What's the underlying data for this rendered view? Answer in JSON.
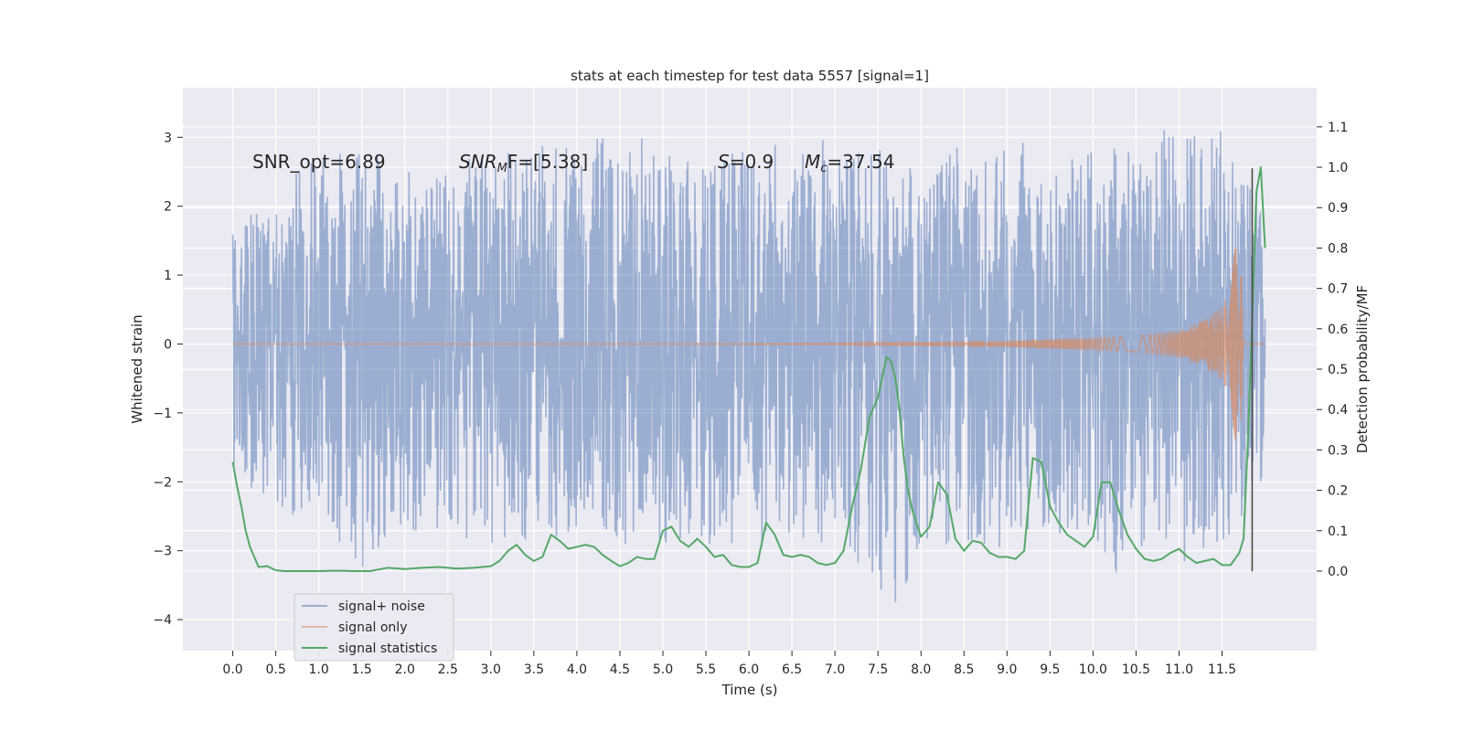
{
  "chart_data": {
    "type": "line",
    "title": "stats at each timestep for test data 5557 [signal=1]",
    "xlabel": "Time (s)",
    "ylabel_left": "Whitened strain",
    "ylabel_right": "Detection probability/MF",
    "xlim": [
      -0.58,
      12.6
    ],
    "ylim_left": [
      -4.45,
      3.72
    ],
    "ylim_right": [
      -0.197,
      1.197
    ],
    "x_ticks": [
      "0.0",
      "0.5",
      "1.0",
      "1.5",
      "2.0",
      "2.5",
      "3.0",
      "3.5",
      "4.0",
      "4.5",
      "5.0",
      "5.5",
      "6.0",
      "6.5",
      "7.0",
      "7.5",
      "8.0",
      "8.5",
      "9.0",
      "9.5",
      "10.0",
      "10.5",
      "11.0",
      "11.5"
    ],
    "y_ticks_left": [
      "−4",
      "−3",
      "−2",
      "−1",
      "0",
      "1",
      "2",
      "3"
    ],
    "y_ticks_right": [
      "0.0",
      "0.1",
      "0.2",
      "0.3",
      "0.4",
      "0.5",
      "0.6",
      "0.7",
      "0.8",
      "0.9",
      "1.0",
      "1.1"
    ],
    "grid": true,
    "legend_position": "lower-left",
    "annotations": {
      "snr_opt": "SNR_opt=6.89",
      "snr_mf_main": "SNR",
      "snr_mf_sub": "M",
      "snr_mf_value": "F=[5.38]",
      "s_symbol": "S",
      "s_value": "=0.9",
      "mc_symbol": "M",
      "mc_sub": "c",
      "mc_value": "=37.54"
    },
    "series": [
      {
        "name": "signal+ noise",
        "color": "#4c72b0",
        "axis": "left",
        "x_range": [
          0.0,
          12.0
        ],
        "envelope": [
          [
            0.0,
            1.6,
            -1.9
          ],
          [
            0.5,
            2.3,
            -2.4
          ],
          [
            1.0,
            2.7,
            -2.6
          ],
          [
            1.5,
            2.9,
            -3.3
          ],
          [
            2.0,
            2.5,
            -2.7
          ],
          [
            2.5,
            2.6,
            -2.8
          ],
          [
            3.0,
            2.8,
            -3.0
          ],
          [
            3.5,
            2.9,
            -2.8
          ],
          [
            4.0,
            2.9,
            -2.8
          ],
          [
            4.5,
            3.2,
            -2.9
          ],
          [
            5.0,
            2.8,
            -3.0
          ],
          [
            5.5,
            2.8,
            -2.9
          ],
          [
            6.0,
            2.9,
            -3.0
          ],
          [
            6.5,
            2.9,
            -2.9
          ],
          [
            7.0,
            3.0,
            -2.9
          ],
          [
            7.5,
            2.9,
            -3.5
          ],
          [
            7.7,
            2.6,
            -3.9
          ],
          [
            8.0,
            2.6,
            -3.0
          ],
          [
            8.5,
            2.9,
            -2.9
          ],
          [
            9.0,
            3.0,
            -3.0
          ],
          [
            9.5,
            2.8,
            -2.8
          ],
          [
            10.0,
            2.8,
            -2.8
          ],
          [
            10.5,
            3.0,
            -3.8
          ],
          [
            11.0,
            3.2,
            -3.2
          ],
          [
            11.5,
            3.2,
            -3.0
          ],
          [
            12.0,
            1.9,
            -1.9
          ]
        ]
      },
      {
        "name": "signal only",
        "color": "#dd8452",
        "axis": "left",
        "x_range": [
          0.0,
          12.0
        ],
        "amplitude": [
          [
            0.0,
            0.0
          ],
          [
            7.0,
            0.01
          ],
          [
            8.0,
            0.03
          ],
          [
            9.0,
            0.05
          ],
          [
            10.0,
            0.09
          ],
          [
            10.5,
            0.12
          ],
          [
            11.0,
            0.2
          ],
          [
            11.3,
            0.35
          ],
          [
            11.5,
            0.55
          ],
          [
            11.6,
            0.8
          ],
          [
            11.66,
            1.6
          ],
          [
            11.72,
            1.2
          ],
          [
            11.75,
            0.0
          ],
          [
            12.0,
            0.0
          ]
        ]
      },
      {
        "name": "signal statistics",
        "color": "#55a868",
        "axis": "right",
        "x": [
          0.0,
          0.05,
          0.1,
          0.15,
          0.2,
          0.3,
          0.4,
          0.5,
          0.6,
          0.8,
          1.0,
          1.2,
          1.4,
          1.6,
          1.8,
          2.0,
          2.2,
          2.4,
          2.6,
          2.8,
          3.0,
          3.1,
          3.2,
          3.3,
          3.4,
          3.5,
          3.6,
          3.7,
          3.8,
          3.9,
          4.0,
          4.1,
          4.2,
          4.3,
          4.4,
          4.5,
          4.6,
          4.7,
          4.8,
          4.9,
          5.0,
          5.1,
          5.2,
          5.3,
          5.4,
          5.5,
          5.6,
          5.7,
          5.8,
          5.9,
          6.0,
          6.1,
          6.2,
          6.3,
          6.4,
          6.5,
          6.6,
          6.7,
          6.8,
          6.9,
          7.0,
          7.1,
          7.2,
          7.3,
          7.4,
          7.5,
          7.6,
          7.65,
          7.7,
          7.75,
          7.8,
          7.85,
          7.9,
          8.0,
          8.1,
          8.2,
          8.3,
          8.4,
          8.5,
          8.6,
          8.7,
          8.8,
          8.9,
          9.0,
          9.1,
          9.2,
          9.3,
          9.4,
          9.5,
          9.6,
          9.7,
          9.8,
          9.9,
          10.0,
          10.1,
          10.2,
          10.3,
          10.4,
          10.5,
          10.6,
          10.7,
          10.8,
          10.9,
          11.0,
          11.1,
          11.2,
          11.3,
          11.4,
          11.5,
          11.6,
          11.7,
          11.75,
          11.8,
          11.85,
          11.9,
          11.95,
          12.0
        ],
        "y": [
          0.27,
          0.21,
          0.16,
          0.1,
          0.06,
          0.01,
          0.012,
          0.002,
          0.0,
          0.0,
          0.0,
          0.001,
          0.0,
          0.0,
          0.008,
          0.005,
          0.008,
          0.01,
          0.006,
          0.008,
          0.012,
          0.025,
          0.05,
          0.065,
          0.04,
          0.025,
          0.035,
          0.09,
          0.075,
          0.055,
          0.06,
          0.065,
          0.06,
          0.04,
          0.025,
          0.012,
          0.02,
          0.035,
          0.03,
          0.03,
          0.1,
          0.11,
          0.075,
          0.06,
          0.08,
          0.06,
          0.035,
          0.04,
          0.015,
          0.01,
          0.01,
          0.02,
          0.12,
          0.09,
          0.04,
          0.035,
          0.04,
          0.035,
          0.02,
          0.015,
          0.02,
          0.05,
          0.16,
          0.25,
          0.38,
          0.43,
          0.53,
          0.52,
          0.48,
          0.4,
          0.28,
          0.2,
          0.15,
          0.085,
          0.11,
          0.22,
          0.19,
          0.08,
          0.05,
          0.075,
          0.07,
          0.045,
          0.035,
          0.035,
          0.03,
          0.05,
          0.28,
          0.27,
          0.16,
          0.12,
          0.09,
          0.075,
          0.06,
          0.085,
          0.22,
          0.22,
          0.15,
          0.09,
          0.055,
          0.03,
          0.025,
          0.03,
          0.045,
          0.055,
          0.035,
          0.02,
          0.025,
          0.03,
          0.015,
          0.015,
          0.045,
          0.08,
          0.32,
          0.62,
          0.94,
          1.0,
          0.8
        ]
      },
      {
        "name": "",
        "color": "#4d4d4d",
        "axis": "left",
        "x": [
          11.85,
          11.85
        ],
        "y": [
          2.55,
          -3.3
        ]
      }
    ]
  }
}
